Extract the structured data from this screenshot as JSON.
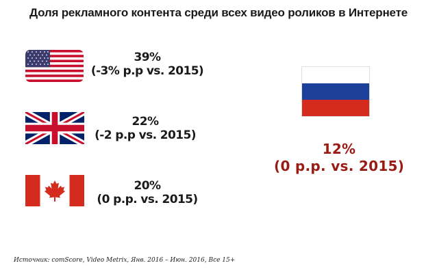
{
  "title": "Доля рекламного контента среди всех видео роликов в Интернете",
  "countries": [
    {
      "flag": "usa-flag-icon",
      "value": "39%",
      "change": "(-3% p.p vs. 2015)"
    },
    {
      "flag": "uk-flag-icon",
      "value": "22%",
      "change": "(-2 p.p vs. 2015)"
    },
    {
      "flag": "canada-flag-icon",
      "value": "20%",
      "change": "(0 p.p. vs. 2015)"
    }
  ],
  "russia": {
    "flag": "russia-flag-icon",
    "value": "12%",
    "change": "(0 p.p. vs. 2015)"
  },
  "source": "Источник: comScore, Video Metrix, Янв. 2016 – Июн. 2016, Все 15+",
  "colors": {
    "russia_text": "#9a1b14",
    "text": "#1a1a1a",
    "flag_red": "#c8102e",
    "flag_blue": "#3c3b6e",
    "uk_blue": "#012169",
    "ru_blue": "#1c3f9a",
    "ru_red": "#d52b1e"
  }
}
